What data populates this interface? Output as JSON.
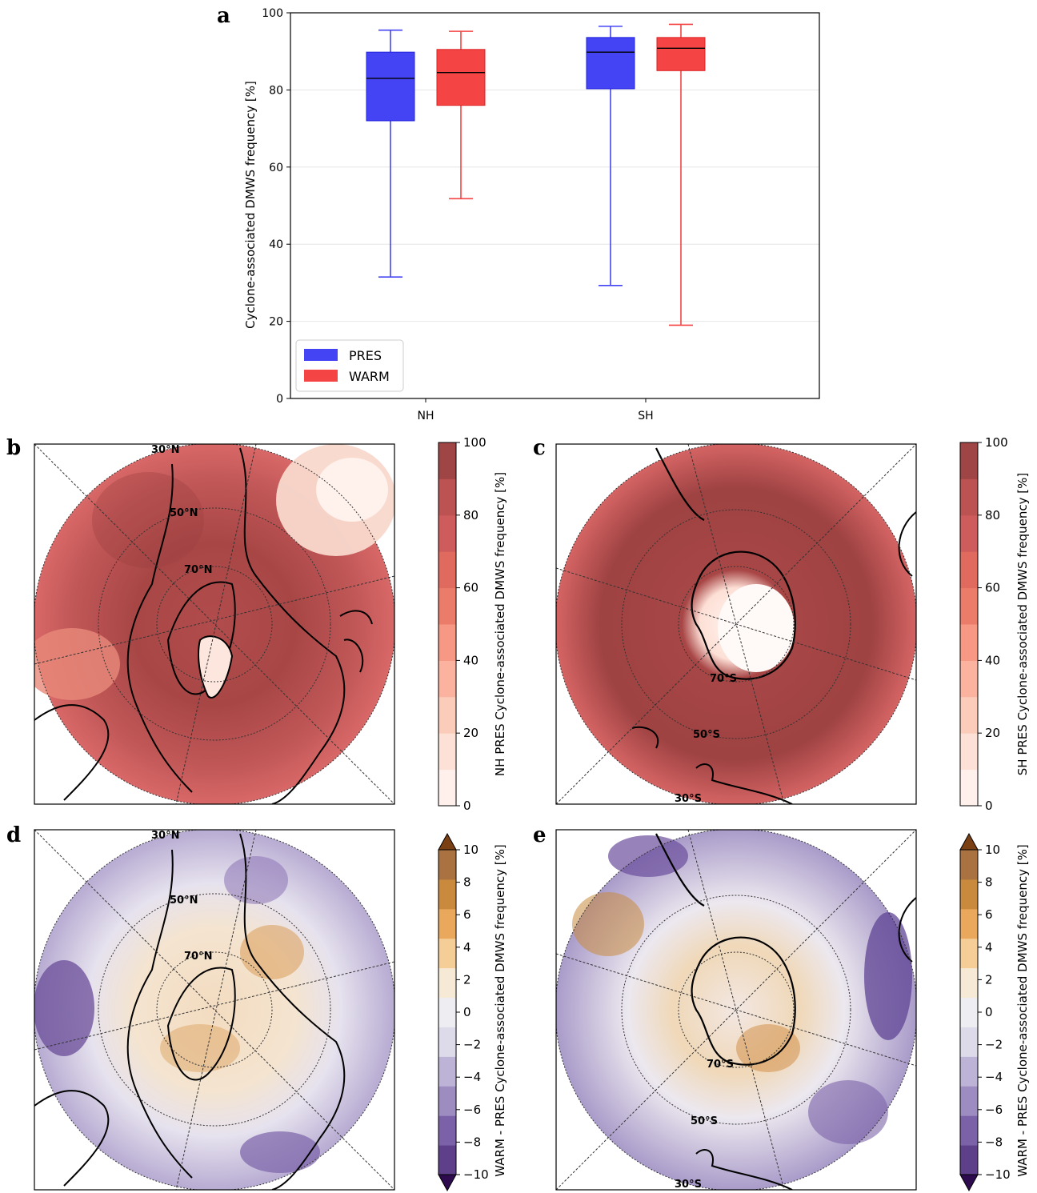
{
  "panels": {
    "a": "a",
    "b": "b",
    "c": "c",
    "d": "d",
    "e": "e"
  },
  "chart_data": [
    {
      "type": "box",
      "panel": "a",
      "ylabel": "Cyclone-associated DMWS frequency [%]",
      "ylim": [
        0,
        100
      ],
      "yticks": [
        0,
        20,
        40,
        60,
        80,
        100
      ],
      "grid": true,
      "categories": [
        "NH",
        "SH"
      ],
      "legend_position": "bottom-left",
      "series": [
        {
          "name": "PRES",
          "color": "#4444f4",
          "boxes": [
            {
              "category": "NH",
              "whisker_low": 31.5,
              "q1": 72.0,
              "median": 83.0,
              "q3": 89.8,
              "whisker_high": 95.5
            },
            {
              "category": "SH",
              "whisker_low": 29.3,
              "q1": 80.3,
              "median": 89.8,
              "q3": 93.6,
              "whisker_high": 96.5
            }
          ]
        },
        {
          "name": "WARM",
          "color": "#f44444",
          "boxes": [
            {
              "category": "NH",
              "whisker_low": 51.8,
              "q1": 76.0,
              "median": 84.5,
              "q3": 90.5,
              "whisker_high": 95.2
            },
            {
              "category": "SH",
              "whisker_low": 19.0,
              "q1": 85.0,
              "median": 90.8,
              "q3": 93.6,
              "whisker_high": 97.0
            }
          ]
        }
      ]
    },
    {
      "type": "heatmap",
      "panel": "b",
      "projection": "north-polar-stereographic",
      "colorbar_label": "NH PRES Cyclone-associated DMWS frequency [%]",
      "colorbar_range": [
        0,
        100
      ],
      "colorbar_ticks": [
        "0",
        "20",
        "40",
        "60",
        "80",
        "100"
      ],
      "latitude_labels": [
        "30°N",
        "50°N",
        "70°N"
      ],
      "colormap": "Reds"
    },
    {
      "type": "heatmap",
      "panel": "c",
      "projection": "south-polar-stereographic",
      "colorbar_label": "SH PRES Cyclone-associated DMWS frequency [%]",
      "colorbar_range": [
        0,
        100
      ],
      "colorbar_ticks": [
        "0",
        "20",
        "40",
        "60",
        "80",
        "100"
      ],
      "latitude_labels": [
        "70°S",
        "50°S",
        "30°S"
      ],
      "colormap": "Reds"
    },
    {
      "type": "heatmap",
      "panel": "d",
      "projection": "north-polar-stereographic",
      "colorbar_label": "WARM - PRES Cyclone-associated DMWS frequency [%]",
      "colorbar_range": [
        -10,
        10
      ],
      "colorbar_ticks": [
        "10",
        "8",
        "6",
        "4",
        "2",
        "0",
        "−2",
        "−4",
        "−6",
        "−8",
        "−10"
      ],
      "latitude_labels": [
        "30°N",
        "50°N",
        "70°N"
      ],
      "colormap": "PuOr"
    },
    {
      "type": "heatmap",
      "panel": "e",
      "projection": "south-polar-stereographic",
      "colorbar_label": "WARM - PRES Cyclone-associated DMWS frequency [%]",
      "colorbar_range": [
        -10,
        10
      ],
      "colorbar_ticks": [
        "10",
        "8",
        "6",
        "4",
        "2",
        "0",
        "−2",
        "−4",
        "−6",
        "−8",
        "−10"
      ],
      "latitude_labels": [
        "70°S",
        "50°S",
        "30°S"
      ],
      "colormap": "PuOr"
    }
  ]
}
